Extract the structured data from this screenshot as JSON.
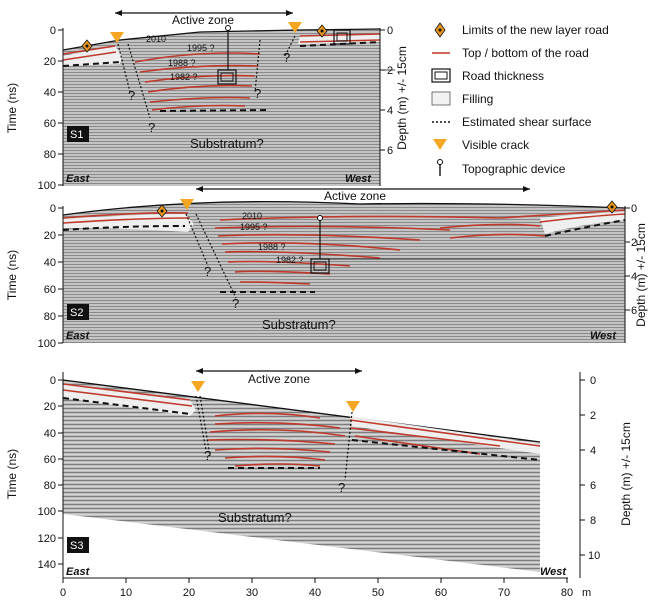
{
  "figure": {
    "panels": [
      {
        "id": "S1",
        "tag": "S1",
        "zone_label": "Active zone",
        "left_label": "East",
        "right_label": "West",
        "substratum_label": "Substratum?",
        "q": "?",
        "time_axis_label": "Time (ns)",
        "time_ticks": [
          "0",
          "20",
          "40",
          "60",
          "80",
          "100"
        ],
        "depth_axis_label": "Depth (m) +/- 15cm",
        "depth_ticks": [
          "0",
          "2",
          "4",
          "6"
        ],
        "years": [
          "2010",
          "1995 ?",
          "1988 ?",
          "1982 ?"
        ]
      },
      {
        "id": "S2",
        "tag": "S2",
        "zone_label": "Active zone",
        "left_label": "East",
        "right_label": "West",
        "substratum_label": "Substratum?",
        "q": "?",
        "time_axis_label": "Time (ns)",
        "time_ticks": [
          "0",
          "20",
          "40",
          "60",
          "80",
          "100"
        ],
        "depth_axis_label": "Depth (m) +/- 15cm",
        "depth_ticks": [
          "0",
          "2",
          "4",
          "6"
        ],
        "years": [
          "2010",
          "1995 ?",
          "1988 ?",
          "1982 ?"
        ]
      },
      {
        "id": "S3",
        "tag": "S3",
        "zone_label": "Active zone",
        "left_label": "East",
        "right_label": "West",
        "substratum_label": "Substratum?",
        "q": "?",
        "time_axis_label": "Time (ns)",
        "time_ticks": [
          "0",
          "20",
          "40",
          "60",
          "80",
          "100",
          "120",
          "140"
        ],
        "depth_axis_label": "Depth (m) +/- 15cm",
        "depth_ticks": [
          "0",
          "2",
          "4",
          "6",
          "8",
          "10"
        ],
        "x_ticks": [
          "0",
          "10",
          "20",
          "30",
          "40",
          "50",
          "60",
          "70",
          "80"
        ],
        "x_unit": "m"
      }
    ],
    "legend": [
      {
        "icon": "diamond-marker-icon",
        "label": "Limits of the new layer road"
      },
      {
        "icon": "red-line-icon",
        "label": "Top / bottom of the road"
      },
      {
        "icon": "double-rectangle-icon",
        "label": "Road thickness"
      },
      {
        "icon": "grey-rectangle-icon",
        "label": "Filling"
      },
      {
        "icon": "dotted-line-icon",
        "label": "Estimated shear surface"
      },
      {
        "icon": "orange-triangle-icon",
        "label": "Visible crack"
      },
      {
        "icon": "pin-icon",
        "label": "Topographic device"
      }
    ],
    "colors": {
      "road_line": "#c0392b",
      "crack": "#f5a623",
      "marker": "#e6961e",
      "radar_bg": "#b8b8b8"
    }
  }
}
